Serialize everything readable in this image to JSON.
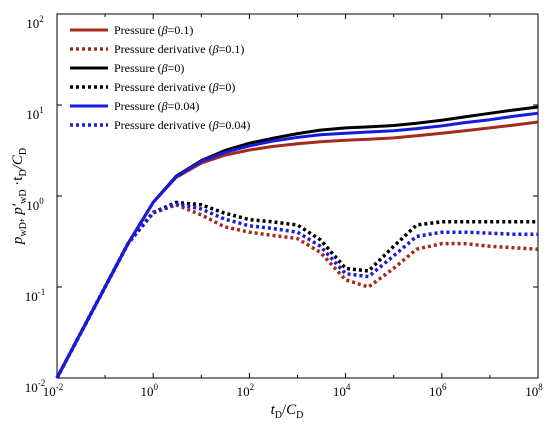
{
  "chart_data": {
    "type": "line",
    "x_scale": "log",
    "y_scale": "log",
    "xlim": [
      0.01,
      100000000
    ],
    "ylim": [
      0.01,
      100
    ],
    "grid": false,
    "legend_position": "top-left",
    "x_ticks": [
      {
        "value": 0.01,
        "base": "10",
        "exp": "-2"
      },
      {
        "value": 1,
        "base": "10",
        "exp": "0"
      },
      {
        "value": 100,
        "base": "10",
        "exp": "2"
      },
      {
        "value": 10000,
        "base": "10",
        "exp": "4"
      },
      {
        "value": 1000000,
        "base": "10",
        "exp": "6"
      },
      {
        "value": 100000000,
        "base": "10",
        "exp": "8"
      }
    ],
    "y_ticks": [
      {
        "value": 0.01,
        "base": "10",
        "exp": "-2"
      },
      {
        "value": 0.1,
        "base": "10",
        "exp": "-1"
      },
      {
        "value": 1,
        "base": "10",
        "exp": "0"
      },
      {
        "value": 10,
        "base": "10",
        "exp": "1"
      },
      {
        "value": 100,
        "base": "10",
        "exp": "2"
      }
    ],
    "xlabel": {
      "main1": "t",
      "sub1": "D",
      "sep": "/",
      "main2": "C",
      "sub2": "D"
    },
    "ylabel": {
      "p": "p",
      "p_sub": "wD",
      "comma": ", ",
      "pp": "p′",
      "pp_sub": "wD",
      "dot": " ·t",
      "t_sub": "D",
      "slash": "/C",
      "c_sub": "D"
    },
    "series": [
      {
        "name": "Pressure (β=0.1)",
        "label_main": "Pressure (",
        "label_greek": "β",
        "label_tail": "=0.1)",
        "color": "#a52a1c",
        "dash": "solid",
        "x": [
          0.01,
          0.03,
          0.1,
          0.3,
          1,
          3,
          10,
          30,
          100,
          300,
          1000,
          3000,
          10000,
          30000,
          100000,
          300000,
          1000000,
          3000000,
          10000000,
          30000000,
          100000000
        ],
        "y": [
          0.01,
          0.03,
          0.1,
          0.3,
          0.85,
          1.6,
          2.3,
          2.8,
          3.2,
          3.5,
          3.75,
          3.95,
          4.1,
          4.2,
          4.35,
          4.6,
          4.9,
          5.2,
          5.6,
          6.0,
          6.5
        ]
      },
      {
        "name": "Pressure derivative (β=0.1)",
        "label_main": "Pressure derivative (",
        "label_greek": "β",
        "label_tail": "=0.1)",
        "color": "#a52a1c",
        "dash": "dotted",
        "x": [
          0.01,
          0.03,
          0.1,
          0.3,
          1,
          3,
          10,
          30,
          100,
          300,
          1000,
          3000,
          10000,
          30000,
          100000,
          300000,
          1000000,
          3000000,
          10000000,
          30000000,
          100000000
        ],
        "y": [
          0.01,
          0.03,
          0.1,
          0.3,
          0.65,
          0.8,
          0.62,
          0.46,
          0.4,
          0.37,
          0.34,
          0.24,
          0.12,
          0.1,
          0.16,
          0.26,
          0.3,
          0.3,
          0.28,
          0.27,
          0.26
        ]
      },
      {
        "name": "Pressure (β=0)",
        "label_main": "Pressure (",
        "label_greek": "β",
        "label_tail": "=0)",
        "color": "#000000",
        "dash": "solid",
        "x": [
          0.01,
          0.03,
          0.1,
          0.3,
          1,
          3,
          10,
          30,
          100,
          300,
          1000,
          3000,
          10000,
          30000,
          100000,
          300000,
          1000000,
          3000000,
          10000000,
          30000000,
          100000000
        ],
        "y": [
          0.01,
          0.03,
          0.1,
          0.3,
          0.85,
          1.65,
          2.45,
          3.15,
          3.8,
          4.3,
          4.85,
          5.3,
          5.6,
          5.75,
          5.95,
          6.3,
          6.8,
          7.4,
          8.1,
          8.8,
          9.5
        ]
      },
      {
        "name": "Pressure derivative (β=0)",
        "label_main": "Pressure derivative (",
        "label_greek": "β",
        "label_tail": "=0)",
        "color": "#000000",
        "dash": "dotted",
        "x": [
          0.01,
          0.03,
          0.1,
          0.3,
          1,
          3,
          10,
          30,
          100,
          300,
          1000,
          3000,
          10000,
          30000,
          100000,
          300000,
          1000000,
          3000000,
          10000000,
          30000000,
          100000000
        ],
        "y": [
          0.01,
          0.03,
          0.1,
          0.3,
          0.66,
          0.85,
          0.8,
          0.65,
          0.55,
          0.52,
          0.48,
          0.33,
          0.16,
          0.15,
          0.28,
          0.48,
          0.52,
          0.52,
          0.52,
          0.52,
          0.52
        ]
      },
      {
        "name": "Pressure (β=0.04)",
        "label_main": "Pressure (",
        "label_greek": "β",
        "label_tail": "=0.04)",
        "color": "#1a1adc",
        "dash": "solid",
        "x": [
          0.01,
          0.03,
          0.1,
          0.3,
          1,
          3,
          10,
          30,
          100,
          300,
          1000,
          3000,
          10000,
          30000,
          100000,
          300000,
          1000000,
          3000000,
          10000000,
          30000000,
          100000000
        ],
        "y": [
          0.01,
          0.03,
          0.1,
          0.3,
          0.85,
          1.62,
          2.4,
          3.0,
          3.55,
          4.0,
          4.4,
          4.7,
          4.9,
          5.05,
          5.2,
          5.5,
          5.9,
          6.4,
          6.9,
          7.5,
          8.1
        ]
      },
      {
        "name": "Pressure derivative (β=0.04)",
        "label_main": "Pressure derivative (",
        "label_greek": "β",
        "label_tail": "=0.04)",
        "color": "#1a1adc",
        "dash": "dotted",
        "x": [
          0.01,
          0.03,
          0.1,
          0.3,
          1,
          3,
          10,
          30,
          100,
          300,
          1000,
          3000,
          10000,
          30000,
          100000,
          300000,
          1000000,
          3000000,
          10000000,
          30000000,
          100000000
        ],
        "y": [
          0.01,
          0.03,
          0.1,
          0.3,
          0.66,
          0.82,
          0.72,
          0.56,
          0.47,
          0.44,
          0.4,
          0.28,
          0.14,
          0.13,
          0.22,
          0.36,
          0.4,
          0.4,
          0.39,
          0.38,
          0.38
        ]
      }
    ]
  }
}
